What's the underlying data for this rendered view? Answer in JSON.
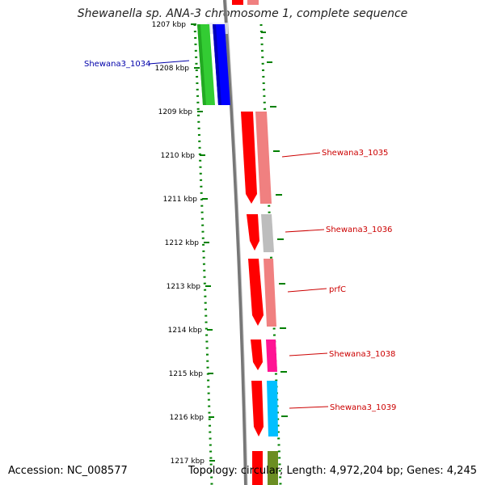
{
  "title": "Shewanella sp. ANA-3 chromosome 1, complete sequence",
  "footer": {
    "accession": "Accession: NC_008577",
    "topology": "Topology: circular; Length: 4,972,204 bp; Genes: 4,245"
  },
  "ticks": [
    "1207 kbp",
    "1208 kbp",
    "1209 kbp",
    "1210 kbp",
    "1211 kbp",
    "1212 kbp",
    "1213 kbp",
    "1214 kbp",
    "1215 kbp",
    "1216 kbp",
    "1217 kbp"
  ],
  "colors": {
    "forward_cds": "#ff0000",
    "forward_light": "#f08080",
    "grey_feature": "#bdbdbd",
    "magenta": "#ff1493",
    "cyan": "#00bfff",
    "olive": "#6b8e23",
    "green": "#33cc33",
    "blue": "#0000ff",
    "label_red": "#cc0000",
    "label_blue": "#0000aa",
    "tick_green": "#008000",
    "backbone": "#777777"
  },
  "genes": [
    {
      "name": "Shewana3_1034",
      "color": "blue"
    },
    {
      "name": "Shewana3_1035",
      "color": "red"
    },
    {
      "name": "Shewana3_1036",
      "color": "red"
    },
    {
      "name": "prfC",
      "color": "red"
    },
    {
      "name": "Shewana3_1038",
      "color": "red"
    },
    {
      "name": "Shewana3_1039",
      "color": "red"
    }
  ]
}
